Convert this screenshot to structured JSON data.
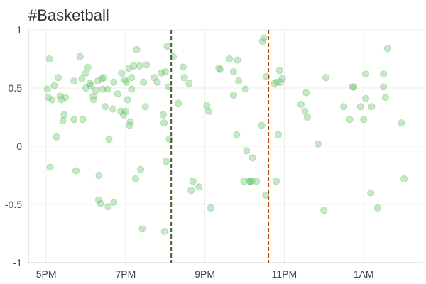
{
  "chart_data": {
    "type": "scatter",
    "title": "#Basketball",
    "xlabel": "",
    "ylabel": "",
    "x_ticks": [
      {
        "value": 17,
        "label": "5PM"
      },
      {
        "value": 19,
        "label": "7PM"
      },
      {
        "value": 21,
        "label": "9PM"
      },
      {
        "value": 23,
        "label": "11PM"
      },
      {
        "value": 25,
        "label": "1AM"
      }
    ],
    "xlim": [
      16.55,
      26.5
    ],
    "y_ticks": [
      {
        "value": 1,
        "label": "1"
      },
      {
        "value": 0.5,
        "label": "0.5"
      },
      {
        "value": 0,
        "label": "0"
      },
      {
        "value": -0.5,
        "label": "-0.5"
      },
      {
        "value": -1,
        "label": "-1"
      }
    ],
    "ylim": [
      -1,
      1
    ],
    "grid": true,
    "point_color": "#6cc36c",
    "vlines": [
      {
        "x": 20.15,
        "color": "#4d5a2e"
      },
      {
        "x": 22.6,
        "color": "#b34700"
      }
    ],
    "points": [
      [
        17.03,
        0.49
      ],
      [
        17.05,
        0.42
      ],
      [
        17.08,
        0.75
      ],
      [
        17.1,
        -0.18
      ],
      [
        17.15,
        0.4
      ],
      [
        17.2,
        0.52
      ],
      [
        17.26,
        0.08
      ],
      [
        17.3,
        0.59
      ],
      [
        17.35,
        0.43
      ],
      [
        17.38,
        0.4
      ],
      [
        17.42,
        0.22
      ],
      [
        17.45,
        0.27
      ],
      [
        17.48,
        0.42
      ],
      [
        17.7,
        0.23
      ],
      [
        17.75,
        -0.21
      ],
      [
        17.7,
        0.56
      ],
      [
        17.85,
        0.77
      ],
      [
        17.9,
        0.58
      ],
      [
        17.92,
        0.23
      ],
      [
        18.0,
        0.5
      ],
      [
        18.0,
        0.63
      ],
      [
        18.05,
        0.68
      ],
      [
        18.1,
        0.54
      ],
      [
        18.12,
        0.52
      ],
      [
        18.18,
        0.43
      ],
      [
        18.2,
        0.4
      ],
      [
        18.25,
        0.48
      ],
      [
        18.3,
        0.56
      ],
      [
        18.32,
        -0.46
      ],
      [
        18.33,
        -0.25
      ],
      [
        18.37,
        -0.49
      ],
      [
        18.4,
        0.58
      ],
      [
        18.42,
        0.49
      ],
      [
        18.45,
        0.59
      ],
      [
        18.48,
        0.34
      ],
      [
        18.55,
        0.49
      ],
      [
        18.56,
        -0.52
      ],
      [
        18.58,
        0.06
      ],
      [
        18.68,
        0.32
      ],
      [
        18.7,
        0.55
      ],
      [
        18.7,
        -0.48
      ],
      [
        18.8,
        0.45
      ],
      [
        18.88,
        0.3
      ],
      [
        18.9,
        0.63
      ],
      [
        18.95,
        0.27
      ],
      [
        18.98,
        0.57
      ],
      [
        19.0,
        0.3
      ],
      [
        19.02,
        0.55
      ],
      [
        19.05,
        0.4
      ],
      [
        19.08,
        0.67
      ],
      [
        19.1,
        0.18
      ],
      [
        19.12,
        0.21
      ],
      [
        19.15,
        0.49
      ],
      [
        19.15,
        0.59
      ],
      [
        19.2,
        0.69
      ],
      [
        19.25,
        -0.28
      ],
      [
        19.28,
        0.83
      ],
      [
        19.35,
        0.69
      ],
      [
        19.38,
        -0.2
      ],
      [
        19.42,
        -0.71
      ],
      [
        19.45,
        0.55
      ],
      [
        19.5,
        0.34
      ],
      [
        19.52,
        0.7
      ],
      [
        19.72,
        0.59
      ],
      [
        19.8,
        0.55
      ],
      [
        19.9,
        0.63
      ],
      [
        19.95,
        0.27
      ],
      [
        19.97,
        0.2
      ],
      [
        19.98,
        -0.73
      ],
      [
        20.0,
        0.64
      ],
      [
        20.02,
        -0.13
      ],
      [
        20.05,
        0.86
      ],
      [
        20.08,
        0.51
      ],
      [
        20.1,
        0.06
      ],
      [
        20.2,
        0.77
      ],
      [
        20.33,
        0.37
      ],
      [
        20.45,
        0.68
      ],
      [
        20.48,
        0.59
      ],
      [
        20.6,
        0.54
      ],
      [
        20.65,
        -0.38
      ],
      [
        20.7,
        -0.3
      ],
      [
        20.85,
        -0.35
      ],
      [
        21.05,
        0.35
      ],
      [
        21.1,
        0.3
      ],
      [
        21.15,
        -0.53
      ],
      [
        21.35,
        0.67
      ],
      [
        21.38,
        0.66
      ],
      [
        21.62,
        0.75
      ],
      [
        21.72,
        0.44
      ],
      [
        21.72,
        0.64
      ],
      [
        21.8,
        0.1
      ],
      [
        21.82,
        0.74
      ],
      [
        21.85,
        0.56
      ],
      [
        21.98,
        -0.3
      ],
      [
        22.02,
        0.49
      ],
      [
        22.05,
        -0.04
      ],
      [
        22.12,
        -0.3
      ],
      [
        22.14,
        -0.3
      ],
      [
        22.18,
        -0.3
      ],
      [
        22.2,
        -0.1
      ],
      [
        22.3,
        -0.3
      ],
      [
        22.43,
        0.18
      ],
      [
        22.45,
        0.9
      ],
      [
        22.48,
        0.93
      ],
      [
        22.53,
        -0.42
      ],
      [
        22.55,
        0.6
      ],
      [
        22.75,
        0.54
      ],
      [
        22.8,
        -0.3
      ],
      [
        22.82,
        0.55
      ],
      [
        22.85,
        0.1
      ],
      [
        22.88,
        0.65
      ],
      [
        22.9,
        0.55
      ],
      [
        22.95,
        0.58
      ],
      [
        23.42,
        0.36
      ],
      [
        23.52,
        0.3
      ],
      [
        23.55,
        0.46
      ],
      [
        23.58,
        0.25
      ],
      [
        23.85,
        0.02
      ],
      [
        24.0,
        -0.55
      ],
      [
        24.05,
        0.59
      ],
      [
        24.5,
        0.34
      ],
      [
        24.65,
        0.23
      ],
      [
        24.72,
        0.51
      ],
      [
        24.75,
        0.51
      ],
      [
        24.92,
        0.34
      ],
      [
        25.0,
        0.23
      ],
      [
        25.05,
        0.41
      ],
      [
        25.05,
        0.62
      ],
      [
        25.18,
        -0.4
      ],
      [
        25.2,
        0.34
      ],
      [
        25.35,
        -0.53
      ],
      [
        25.5,
        0.62
      ],
      [
        25.5,
        0.51
      ],
      [
        25.55,
        0.42
      ],
      [
        25.6,
        0.84
      ],
      [
        25.95,
        0.2
      ],
      [
        26.02,
        -0.28
      ]
    ]
  }
}
